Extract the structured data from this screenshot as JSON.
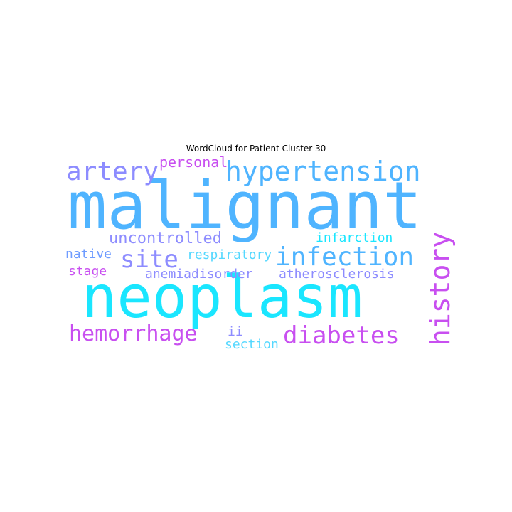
{
  "title": "WordCloud for Patient Cluster 30",
  "colors": {
    "sky": "#4fb4ff",
    "cyan": "#1ae6ff",
    "violet": "#8d8cff",
    "magenta": "#c84ff0",
    "light_cyan": "#55d8ff"
  },
  "words": [
    {
      "text": "malignant",
      "color": "#4fb4ff",
      "rotated": false
    },
    {
      "text": "neoplasm",
      "color": "#1ae6ff",
      "rotated": false
    },
    {
      "text": "hypertension",
      "color": "#4fb4ff",
      "rotated": false
    },
    {
      "text": "artery",
      "color": "#8d8cff",
      "rotated": false
    },
    {
      "text": "personal",
      "color": "#c84ff0",
      "rotated": false
    },
    {
      "text": "infection",
      "color": "#4fb4ff",
      "rotated": false
    },
    {
      "text": "site",
      "color": "#8d8cff",
      "rotated": false
    },
    {
      "text": "history",
      "color": "#c84ff0",
      "rotated": true
    },
    {
      "text": "uncontrolled",
      "color": "#8d8cff",
      "rotated": false
    },
    {
      "text": "infarction",
      "color": "#1ae6ff",
      "rotated": false
    },
    {
      "text": "native",
      "color": "#6f9cff",
      "rotated": false
    },
    {
      "text": "respiratory",
      "color": "#55d8ff",
      "rotated": false
    },
    {
      "text": "stage",
      "color": "#c84ff0",
      "rotated": false
    },
    {
      "text": "anemiadisorder",
      "color": "#8d8cff",
      "rotated": false
    },
    {
      "text": "atherosclerosis",
      "color": "#8d8cff",
      "rotated": false
    },
    {
      "text": "hemorrhage",
      "color": "#c84ff0",
      "rotated": false
    },
    {
      "text": "diabetes",
      "color": "#c84ff0",
      "rotated": false
    },
    {
      "text": "ii",
      "color": "#8d8cff",
      "rotated": false
    },
    {
      "text": "section",
      "color": "#55d8ff",
      "rotated": false
    }
  ]
}
